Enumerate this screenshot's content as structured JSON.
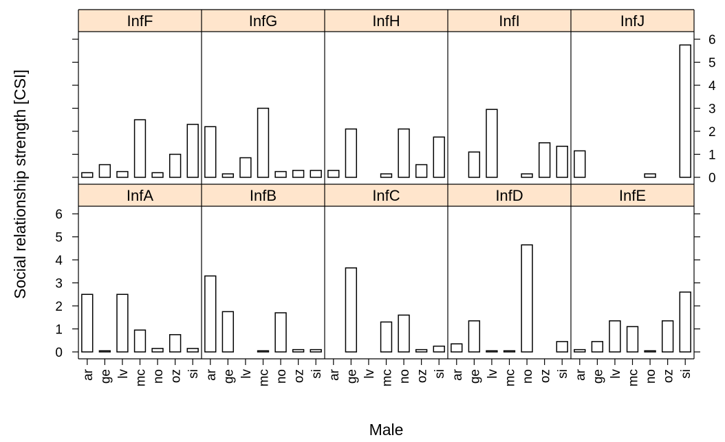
{
  "chart_data": {
    "type": "bar",
    "layout": "lattice",
    "xlabel": "Male",
    "ylabel": "Social relationship strength [CSI]",
    "categories": [
      "ar",
      "ge",
      "lv",
      "mc",
      "no",
      "oz",
      "si"
    ],
    "ylim": [
      -0.3,
      6.3
    ],
    "yticks": [
      0,
      1,
      2,
      3,
      4,
      5,
      6
    ],
    "y_axis_labels": {
      "bottom_row": "left",
      "top_row": "right"
    },
    "colors": {
      "strip": "#ffe5cc",
      "bar_fill": "#ffffff",
      "stroke": "#000000"
    },
    "panels": [
      {
        "name": "InfF",
        "row": 0,
        "col": 0,
        "values": [
          0.2,
          0.55,
          0.25,
          2.5,
          0.2,
          1.0,
          2.3
        ]
      },
      {
        "name": "InfG",
        "row": 0,
        "col": 1,
        "values": [
          2.2,
          0.15,
          0.85,
          3.0,
          0.25,
          0.3,
          0.3
        ]
      },
      {
        "name": "InfH",
        "row": 0,
        "col": 2,
        "values": [
          0.3,
          2.1,
          0.0,
          0.15,
          2.1,
          0.55,
          1.75
        ]
      },
      {
        "name": "InfI",
        "row": 0,
        "col": 3,
        "values": [
          0.0,
          1.1,
          2.95,
          0.0,
          0.15,
          1.5,
          1.35
        ]
      },
      {
        "name": "InfJ",
        "row": 0,
        "col": 4,
        "values": [
          1.15,
          0.0,
          0.0,
          0.0,
          0.15,
          0.0,
          5.75
        ]
      },
      {
        "name": "InfA",
        "row": 1,
        "col": 0,
        "values": [
          2.5,
          0.05,
          2.5,
          0.95,
          0.15,
          0.75,
          0.15
        ]
      },
      {
        "name": "InfB",
        "row": 1,
        "col": 1,
        "values": [
          3.3,
          1.75,
          0.0,
          0.05,
          1.7,
          0.1,
          0.1
        ]
      },
      {
        "name": "InfC",
        "row": 1,
        "col": 2,
        "values": [
          0.0,
          3.65,
          0.0,
          1.3,
          1.6,
          0.1,
          0.25
        ]
      },
      {
        "name": "InfD",
        "row": 1,
        "col": 3,
        "values": [
          0.35,
          1.35,
          0.05,
          0.05,
          4.65,
          0.0,
          0.45
        ]
      },
      {
        "name": "InfE",
        "row": 1,
        "col": 4,
        "values": [
          0.1,
          0.45,
          1.35,
          1.1,
          0.05,
          1.35,
          2.6
        ]
      }
    ]
  }
}
